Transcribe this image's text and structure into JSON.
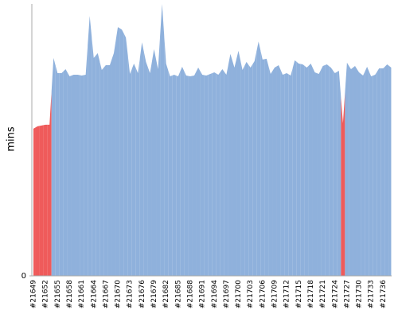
{
  "chart_data": {
    "type": "area",
    "ylabel": "mins",
    "categories": [
      "#21649",
      null,
      null,
      "#21652",
      null,
      null,
      "#21655",
      null,
      null,
      "#21658",
      null,
      null,
      "#21661",
      null,
      null,
      "#21664",
      null,
      null,
      "#21667",
      null,
      null,
      "#21670",
      null,
      null,
      "#21673",
      null,
      null,
      "#21676",
      null,
      null,
      "#21679",
      null,
      null,
      "#21682",
      null,
      null,
      "#21685",
      null,
      null,
      "#21688",
      null,
      null,
      "#21691",
      null,
      null,
      "#21694",
      null,
      null,
      "#21697",
      null,
      null,
      "#21700",
      null,
      null,
      "#21703",
      null,
      null,
      "#21706",
      null,
      null,
      "#21709",
      null,
      null,
      "#21712",
      null,
      null,
      "#21715",
      null,
      null,
      "#21718",
      null,
      null,
      "#21721",
      null,
      null,
      "#21724",
      null,
      null,
      "#21727",
      null,
      null,
      "#21730",
      null,
      null,
      "#21733",
      null,
      null,
      "#21736",
      null,
      null
    ],
    "values": [
      36.8,
      37.4,
      37.6,
      37.8,
      37.8,
      54.5,
      50.7,
      50.7,
      51.7,
      49.9,
      50.3,
      50.3,
      50.1,
      50.3,
      65.0,
      54.5,
      55.7,
      51.5,
      52.7,
      52.7,
      55.7,
      62.2,
      61.6,
      59.6,
      50.5,
      53.1,
      50.7,
      58.4,
      53.5,
      50.7,
      56.7,
      51.7,
      68.0,
      53.1,
      49.9,
      50.3,
      49.9,
      52.3,
      50.1,
      49.9,
      50.1,
      52.1,
      50.3,
      50.1,
      50.5,
      50.9,
      50.3,
      51.7,
      50.3,
      55.5,
      52.1,
      56.3,
      51.5,
      53.5,
      52.1,
      53.7,
      58.6,
      54.1,
      54.3,
      50.5,
      52.1,
      52.7,
      50.3,
      50.7,
      50.1,
      53.9,
      53.1,
      52.9,
      52.1,
      53.1,
      50.9,
      50.5,
      52.5,
      52.9,
      52.1,
      50.7,
      51.3,
      38.2,
      53.3,
      51.7,
      52.5,
      50.9,
      50.1,
      52.3,
      49.9,
      50.3,
      51.9,
      51.9,
      52.9,
      52.1
    ],
    "colors": [
      "#ef5b5b",
      "#ef5b5b",
      "#ef5b5b",
      "#ef5b5b",
      "#ef5b5b",
      "#8fb1dc",
      "#8fb1dc",
      "#8fb1dc",
      "#8fb1dc",
      "#8fb1dc",
      "#8fb1dc",
      "#8fb1dc",
      "#8fb1dc",
      "#8fb1dc",
      "#8fb1dc",
      "#8fb1dc",
      "#8fb1dc",
      "#8fb1dc",
      "#8fb1dc",
      "#8fb1dc",
      "#8fb1dc",
      "#8fb1dc",
      "#8fb1dc",
      "#8fb1dc",
      "#8fb1dc",
      "#8fb1dc",
      "#8fb1dc",
      "#8fb1dc",
      "#8fb1dc",
      "#8fb1dc",
      "#8fb1dc",
      "#8fb1dc",
      "#8fb1dc",
      "#8fb1dc",
      "#8fb1dc",
      "#8fb1dc",
      "#8fb1dc",
      "#8fb1dc",
      "#8fb1dc",
      "#8fb1dc",
      "#8fb1dc",
      "#8fb1dc",
      "#8fb1dc",
      "#8fb1dc",
      "#8fb1dc",
      "#8fb1dc",
      "#8fb1dc",
      "#8fb1dc",
      "#8fb1dc",
      "#8fb1dc",
      "#8fb1dc",
      "#8fb1dc",
      "#8fb1dc",
      "#8fb1dc",
      "#8fb1dc",
      "#8fb1dc",
      "#8fb1dc",
      "#8fb1dc",
      "#8fb1dc",
      "#8fb1dc",
      "#8fb1dc",
      "#8fb1dc",
      "#8fb1dc",
      "#8fb1dc",
      "#8fb1dc",
      "#8fb1dc",
      "#8fb1dc",
      "#8fb1dc",
      "#8fb1dc",
      "#8fb1dc",
      "#8fb1dc",
      "#8fb1dc",
      "#8fb1dc",
      "#8fb1dc",
      "#8fb1dc",
      "#8fb1dc",
      "#8fb1dc",
      "#ef5b5b",
      "#8fb1dc",
      "#8fb1dc",
      "#8fb1dc",
      "#8fb1dc",
      "#8fb1dc",
      "#8fb1dc",
      "#8fb1dc",
      "#8fb1dc",
      "#8fb1dc",
      "#8fb1dc",
      "#8fb1dc",
      "#8fb1dc"
    ],
    "ylim": [
      0,
      68
    ],
    "yticks": [
      0
    ]
  }
}
